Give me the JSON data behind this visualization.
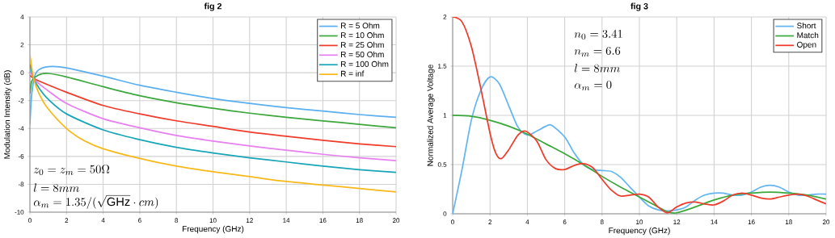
{
  "chart_data": [
    {
      "type": "line",
      "title": "fig 2",
      "xlabel": "Frequency (GHz)",
      "ylabel": "Modulation Intensity (dB)",
      "xlim": [
        0,
        20
      ],
      "ylim": [
        -10,
        4
      ],
      "xticks": [
        0,
        2,
        4,
        6,
        8,
        10,
        12,
        14,
        16,
        18,
        20
      ],
      "yticks": [
        -10,
        -8,
        -6,
        -4,
        -2,
        0,
        2,
        4
      ],
      "grid": true,
      "legend": "top right",
      "annotations": [
        "z_0 = z_m = 50\\Omega",
        "l = 8mm",
        "\\alpha_m = 1.35/(\\sqrt{\\mathrm{GHz}}\\cdot cm)"
      ],
      "series": [
        {
          "name": "R = 5 Ohm",
          "color": "#5aaff0",
          "x": [
            0,
            0.1,
            0.3,
            0.6,
            1.2,
            2,
            4,
            6,
            8,
            10,
            12,
            14,
            16,
            18,
            20
          ],
          "values": [
            -3.7,
            -1.5,
            -0.1,
            0.3,
            0.45,
            0.35,
            -0.25,
            -0.9,
            -1.4,
            -1.85,
            -2.2,
            -2.5,
            -2.75,
            -3.0,
            -3.2
          ]
        },
        {
          "name": "R = 10 Ohm",
          "color": "#3aa83a",
          "x": [
            0,
            0.1,
            0.3,
            0.6,
            1,
            2,
            4,
            6,
            8,
            10,
            12,
            14,
            16,
            18,
            20
          ],
          "values": [
            -1.5,
            -0.6,
            -0.3,
            -0.1,
            -0.05,
            -0.3,
            -1.0,
            -1.65,
            -2.15,
            -2.55,
            -2.9,
            -3.2,
            -3.45,
            -3.7,
            -3.95
          ]
        },
        {
          "name": "R = 25 Ohm",
          "color": "#f03a2a",
          "x": [
            0,
            0.2,
            0.5,
            2,
            4,
            6,
            8,
            10,
            12,
            14,
            16,
            18,
            20
          ],
          "values": [
            -0.2,
            -0.4,
            -0.6,
            -1.4,
            -2.35,
            -2.95,
            -3.45,
            -3.85,
            -4.25,
            -4.55,
            -4.85,
            -5.1,
            -5.3
          ]
        },
        {
          "name": "R = 50 Ohm",
          "color": "#e77ff0",
          "x": [
            0,
            0.2,
            0.5,
            1,
            2,
            4,
            6,
            8,
            10,
            12,
            14,
            16,
            18,
            20
          ],
          "values": [
            0.2,
            -0.4,
            -0.8,
            -1.3,
            -2.2,
            -3.3,
            -3.95,
            -4.5,
            -4.9,
            -5.25,
            -5.55,
            -5.85,
            -6.1,
            -6.3
          ]
        },
        {
          "name": "R = 100 Ohm",
          "color": "#17a5b8",
          "x": [
            0,
            0.2,
            0.5,
            1,
            2,
            4,
            6,
            8,
            10,
            12,
            14,
            16,
            18,
            20
          ],
          "values": [
            0.6,
            -0.4,
            -1.1,
            -1.9,
            -2.95,
            -4.1,
            -4.8,
            -5.35,
            -5.75,
            -6.1,
            -6.4,
            -6.7,
            -6.95,
            -7.15
          ]
        },
        {
          "name": "R = inf",
          "color": "#f8b818",
          "x": [
            0,
            0.2,
            0.5,
            1,
            2,
            3,
            4,
            6,
            8,
            10,
            12,
            14,
            16,
            18,
            20
          ],
          "values": [
            1.3,
            -0.4,
            -1.5,
            -2.6,
            -4.0,
            -4.9,
            -5.45,
            -6.15,
            -6.7,
            -7.1,
            -7.45,
            -7.8,
            -8.05,
            -8.3,
            -8.55
          ]
        }
      ]
    },
    {
      "type": "line",
      "title": "fig 3",
      "xlabel": "Frequency (GHz)",
      "ylabel": "Normalized Average Voltage",
      "xlim": [
        0,
        20
      ],
      "ylim": [
        0,
        2
      ],
      "xticks": [
        0,
        2,
        4,
        6,
        8,
        10,
        12,
        14,
        16,
        18,
        20
      ],
      "yticks": [
        0,
        0.5,
        1,
        1.5,
        2
      ],
      "grid": true,
      "legend": "top right",
      "annotations": [
        "n_0 = 3.41",
        "n_m = 6.6",
        "l = 8mm",
        "\\alpha_m = 0"
      ],
      "series": [
        {
          "name": "Short",
          "color": "#62b5f0",
          "x": [
            0,
            0.5,
            1,
            1.5,
            2,
            2.5,
            3,
            3.5,
            4,
            4.5,
            5,
            5.3,
            6,
            6.5,
            7,
            7.5,
            8,
            8.5,
            9,
            9.5,
            10,
            10.5,
            11,
            11.5,
            12,
            12.5,
            13,
            13.5,
            14,
            14.5,
            15,
            15.5,
            16,
            16.5,
            17,
            17.5,
            18,
            18.5,
            19,
            19.5,
            20
          ],
          "values": [
            0,
            0.45,
            0.95,
            1.25,
            1.39,
            1.32,
            1.1,
            0.88,
            0.8,
            0.84,
            0.89,
            0.9,
            0.78,
            0.62,
            0.5,
            0.45,
            0.44,
            0.43,
            0.37,
            0.27,
            0.17,
            0.08,
            0.04,
            0.03,
            0.04,
            0.07,
            0.14,
            0.19,
            0.21,
            0.21,
            0.19,
            0.19,
            0.22,
            0.27,
            0.29,
            0.27,
            0.22,
            0.19,
            0.19,
            0.2,
            0.2
          ]
        },
        {
          "name": "Match",
          "color": "#3aa83a",
          "x": [
            0,
            1,
            2,
            3,
            4,
            5,
            6,
            7,
            8,
            9,
            10,
            11,
            11.5,
            12,
            13,
            14,
            15,
            16,
            17,
            18,
            19,
            20
          ],
          "values": [
            1,
            0.99,
            0.95,
            0.89,
            0.81,
            0.71,
            0.61,
            0.5,
            0.38,
            0.27,
            0.17,
            0.07,
            0.02,
            0.01,
            0.07,
            0.14,
            0.19,
            0.21,
            0.22,
            0.21,
            0.19,
            0.15
          ]
        },
        {
          "name": "Open",
          "color": "#f03a2a",
          "x": [
            0,
            0.5,
            1,
            1.5,
            2,
            2.3,
            2.6,
            3,
            3.5,
            3.9,
            4.5,
            5,
            5.5,
            6,
            6.5,
            7,
            7.5,
            8,
            8.5,
            9,
            9.5,
            10,
            10.5,
            11,
            11.5,
            12,
            12.5,
            13,
            13.5,
            14,
            14.5,
            15,
            15.5,
            16,
            16.5,
            17,
            17.5,
            18,
            18.5,
            19,
            19.5,
            20
          ],
          "values": [
            2,
            1.95,
            1.7,
            1.28,
            0.82,
            0.62,
            0.56,
            0.65,
            0.8,
            0.84,
            0.74,
            0.55,
            0.46,
            0.45,
            0.49,
            0.51,
            0.47,
            0.35,
            0.24,
            0.18,
            0.19,
            0.2,
            0.17,
            0.07,
            0.01,
            0.07,
            0.11,
            0.12,
            0.1,
            0.09,
            0.13,
            0.19,
            0.21,
            0.19,
            0.16,
            0.15,
            0.17,
            0.19,
            0.2,
            0.18,
            0.14,
            0.1
          ]
        }
      ]
    }
  ]
}
